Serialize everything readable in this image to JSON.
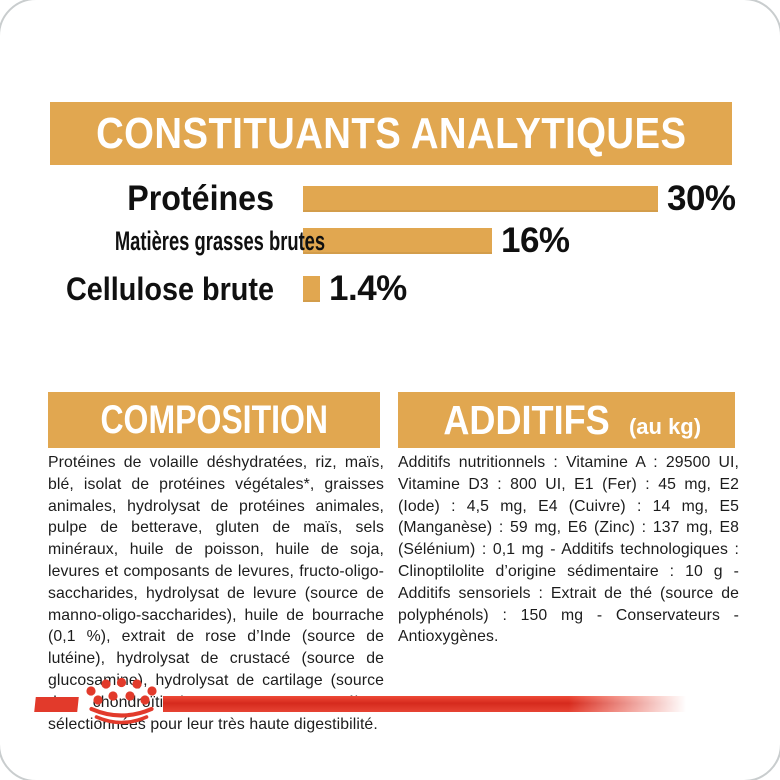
{
  "header": {
    "title": "CONSTITUANTS ANALYTIQUES"
  },
  "chart_data": {
    "type": "bar",
    "orientation": "horizontal",
    "title": "CONSTITUANTS ANALYTIQUES",
    "categories": [
      "Protéines",
      "Matières grasses brutes",
      "Cellulose brute"
    ],
    "values": [
      30,
      16,
      1.4
    ],
    "value_labels": [
      "30%",
      "16%",
      "1.4%"
    ],
    "unit": "%",
    "xlim": [
      0,
      30
    ],
    "grid": false,
    "legend": false,
    "bar_color": "#E1A750"
  },
  "composition": {
    "title": "COMPOSITION",
    "body": "Protéines de volaille déshydratées, riz, maïs, blé, isolat de protéines végétales*, graisses animales, hydrolysat de protéines animales, pulpe de betterave, gluten de maïs, sels minéraux, huile de poisson, huile de soja, levures et composants de levures, fructo-oligo-saccharides, hydrolysat de levure (source de manno-oligo-saccharides), huile de bourrache (0,1 %), extrait de rose d’Inde (source de lutéine), hydrolysat de crustacé (source de glucosamine), hydrolysat de cartilage (source de chondroïtine). *L.I.P. : protéines sélectionnées pour leur très haute digestibilité."
  },
  "additifs": {
    "title": "ADDITIFS",
    "suffix": "(au kg)",
    "body": "Additifs nutritionnels : Vitamine A : 29500 UI, Vitamine D3 : 800 UI, E1 (Fer) : 45 mg, E2 (Iode) : 4,5 mg, E4 (Cuivre) : 14 mg, E5 (Manganèse) : 59 mg, E6 (Zinc) : 137 mg, E8 (Sélénium) : 0,1 mg - Additifs technologiques : Clinoptilolite d’origine sédimentaire : 10 g - Additifs sensoriels : Extrait de thé (source de polyphénols) : 150 mg - Conservateurs - Antioxygènes."
  },
  "footer": {
    "logo": "royal-canin-crown"
  },
  "colors": {
    "gold": "#E1A750",
    "red": "#E23A2B",
    "text": "#1C1C1C",
    "frame": "#C9CDCE"
  }
}
